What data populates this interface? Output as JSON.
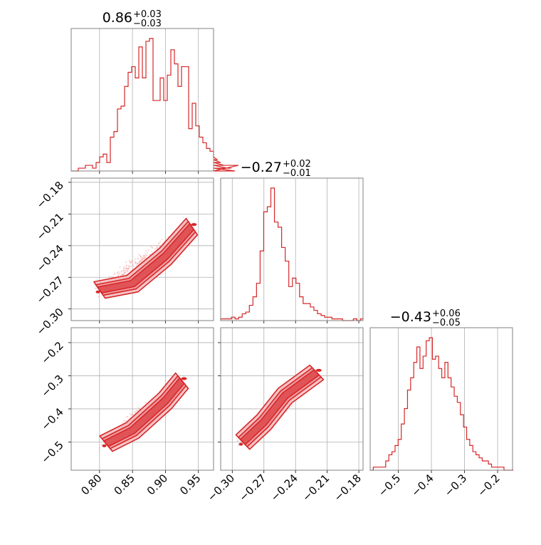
{
  "chart_data": {
    "type": "corner",
    "color": "#d62728",
    "fill_light": "#f4b4b6",
    "scatter_color": "#f2a6a8",
    "panels": [
      {
        "id": "hist-0",
        "type": "histogram",
        "title": {
          "median": "0.86",
          "plus": "+0.03",
          "minus": "−0.03"
        },
        "xlim": [
          0.757,
          0.973
        ],
        "xticks": [
          0.8,
          0.85,
          0.9,
          0.95
        ],
        "xticklabels": [],
        "yticks": [],
        "bins_start": 0.757,
        "bin_width": 0.0054,
        "counts": [
          0,
          0,
          1,
          1,
          2,
          2,
          1,
          3,
          5,
          6,
          3,
          12,
          14,
          22,
          23,
          30,
          35,
          37,
          33,
          44,
          33,
          46,
          47,
          25,
          25,
          33,
          25,
          34,
          43,
          38,
          30,
          37,
          37,
          15,
          24,
          16,
          12,
          10,
          8,
          7,
          5,
          4,
          3,
          2,
          1,
          1,
          0,
          2
        ]
      },
      {
        "id": "scatter-1-0",
        "type": "scatter-contour",
        "xlim": [
          0.757,
          0.973
        ],
        "ylim": [
          -0.311,
          -0.176
        ],
        "xticks": [
          0.8,
          0.85,
          0.9,
          0.95
        ],
        "yticks": [
          -0.18,
          -0.21,
          -0.24,
          -0.27,
          -0.3
        ],
        "yticklabels": [
          "−0.18",
          "−0.21",
          "−0.24",
          "−0.27",
          "−0.30"
        ],
        "contours": [
          {
            "x": [
              0.8,
              0.85,
              0.9,
              0.94
            ],
            "y": [
              -0.282,
              -0.276,
              -0.25,
              -0.222
            ]
          }
        ]
      },
      {
        "id": "hist-1",
        "type": "histogram",
        "title": {
          "median": "−0.27",
          "plus": "+0.02",
          "minus": "−0.01"
        },
        "xlim": [
          -0.311,
          -0.176
        ],
        "xticks": [
          -0.3,
          -0.27,
          -0.24,
          -0.21,
          -0.18
        ],
        "xticklabels": [],
        "yticks": [],
        "bins_start": -0.311,
        "bin_width": 0.0034,
        "counts": [
          1,
          1,
          1,
          2,
          1,
          2,
          4,
          5,
          9,
          14,
          22,
          41,
          64,
          67,
          78,
          58,
          55,
          43,
          35,
          20,
          25,
          22,
          14,
          10,
          10,
          8,
          6,
          4,
          3,
          2,
          2,
          1,
          1,
          1,
          0,
          0,
          0,
          1,
          0,
          1
        ]
      },
      {
        "id": "scatter-2-0",
        "type": "scatter-contour",
        "xlim": [
          0.757,
          0.973
        ],
        "ylim": [
          -0.585,
          -0.155
        ],
        "xticks": [
          0.8,
          0.85,
          0.9,
          0.95
        ],
        "xticklabels": [
          "0.80",
          "0.85",
          "0.90",
          "0.95"
        ],
        "yticks": [
          -0.2,
          -0.3,
          -0.4,
          -0.5
        ],
        "yticklabels": [
          "−0.2",
          "−0.3",
          "−0.4",
          "−0.5"
        ],
        "contours": [
          {
            "x": [
              0.81,
              0.85,
              0.9,
              0.925
            ],
            "y": [
              -0.505,
              -0.465,
              -0.375,
              -0.315
            ]
          }
        ]
      },
      {
        "id": "scatter-2-1",
        "type": "scatter-contour",
        "xlim": [
          -0.311,
          -0.176
        ],
        "ylim": [
          -0.585,
          -0.155
        ],
        "xticks": [
          -0.3,
          -0.27,
          -0.24,
          -0.21,
          -0.18
        ],
        "xticklabels": [
          "−0.30",
          "−0.27",
          "−0.24",
          "−0.21",
          "−0.18"
        ],
        "yticks": [
          -0.2,
          -0.3,
          -0.4,
          -0.5
        ],
        "yticklabels": [],
        "contours": [
          {
            "x": [
              -0.29,
              -0.27,
              -0.25,
              -0.22
            ],
            "y": [
              -0.5,
              -0.44,
              -0.36,
              -0.29
            ]
          }
        ]
      },
      {
        "id": "hist-2",
        "type": "histogram",
        "title": {
          "median": "−0.43",
          "plus": "+0.06",
          "minus": "−0.05"
        },
        "xlim": [
          -0.585,
          -0.155
        ],
        "xticks": [
          -0.5,
          -0.4,
          -0.3,
          -0.2
        ],
        "xticklabels": [
          "−0.5",
          "−0.4",
          "−0.3",
          "−0.2"
        ],
        "yticks": [],
        "bins_start": -0.585,
        "bin_width": 0.0094,
        "counts": [
          0,
          1,
          1,
          1,
          1,
          3,
          5,
          6,
          8,
          10,
          15,
          20,
          26,
          30,
          35,
          40,
          33,
          37,
          42,
          43,
          36,
          37,
          33,
          30,
          35,
          30,
          27,
          24,
          22,
          18,
          14,
          10,
          8,
          6,
          5,
          4,
          3,
          3,
          2,
          1,
          1,
          1,
          1,
          0,
          0,
          0,
          0
        ]
      }
    ]
  }
}
